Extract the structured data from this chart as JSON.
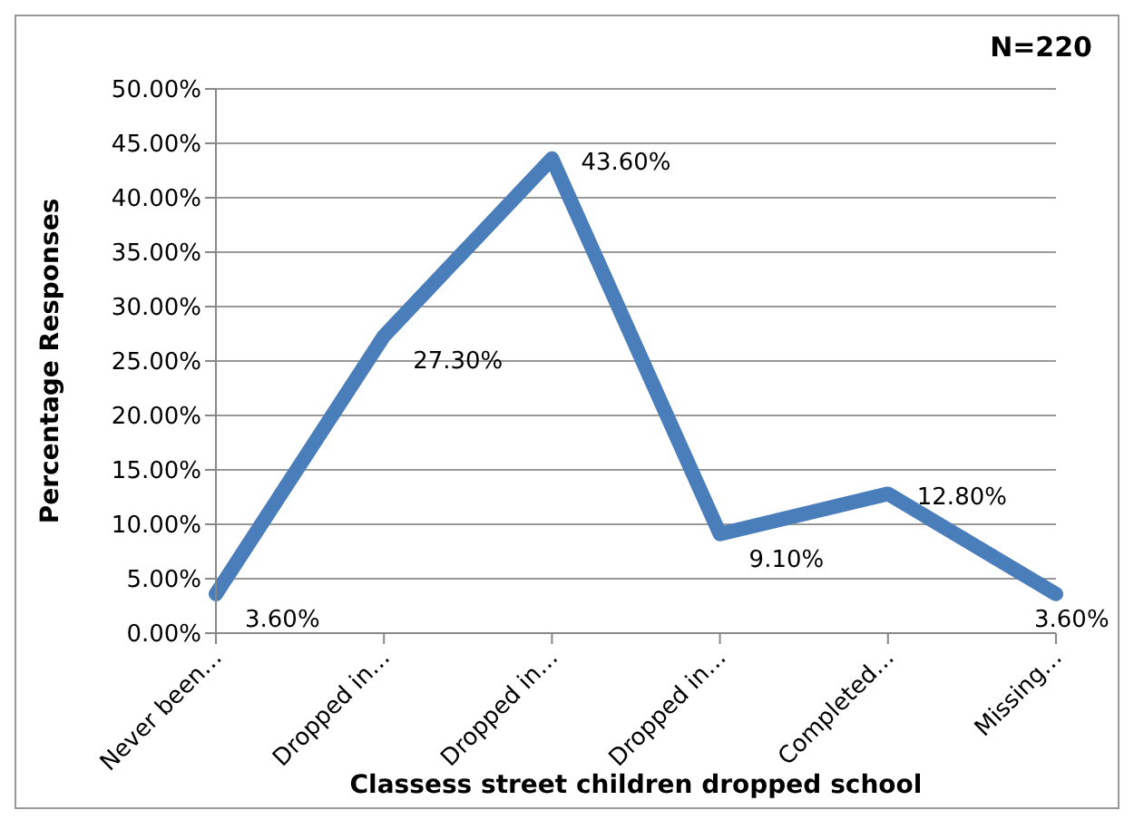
{
  "chart_data": {
    "type": "line",
    "xlabel": "Classess street children dropped school",
    "ylabel": "Percentage Responses",
    "categories": [
      "Never been…",
      "Dropped in…",
      "Dropped in…",
      "Dropped in…",
      "Completed…",
      "Missing…"
    ],
    "series": [
      {
        "color": "#4a7ebb",
        "values": [
          3.6,
          27.3,
          43.6,
          9.1,
          12.8,
          3.6
        ],
        "value_labels": [
          "3.60%",
          "27.30%",
          "43.60%",
          "9.10%",
          "12.80%",
          "3.60%"
        ]
      }
    ],
    "ylim": [
      0,
      50
    ],
    "yticks": [
      {
        "value": 0,
        "label": "0.00%"
      },
      {
        "value": 5,
        "label": "5.00%"
      },
      {
        "value": 10,
        "label": "10.00%"
      },
      {
        "value": 15,
        "label": "15.00%"
      },
      {
        "value": 20,
        "label": "20.00%"
      },
      {
        "value": 25,
        "label": "25.00%"
      },
      {
        "value": 30,
        "label": "30.00%"
      },
      {
        "value": 35,
        "label": "35.00%"
      },
      {
        "value": 40,
        "label": "40.00%"
      },
      {
        "value": 45,
        "label": "45.00%"
      },
      {
        "value": 50,
        "label": "50.00%"
      }
    ],
    "grid": "y",
    "legend": false,
    "marker": "none",
    "line_style": "solid",
    "annotations": [
      "N=220"
    ]
  }
}
